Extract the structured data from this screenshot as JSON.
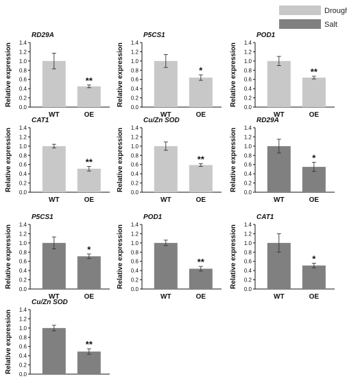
{
  "legend": {
    "position": "top-right",
    "items": [
      {
        "label": "Drought",
        "color": "#c8c8c8"
      },
      {
        "label": "Salt",
        "color": "#808080"
      }
    ]
  },
  "chart_data": [
    {
      "type": "bar",
      "title": "RD29A",
      "treatment": "Drought",
      "categories": [
        "WT",
        "OE"
      ],
      "values": [
        1.0,
        0.45
      ],
      "errors": [
        0.17,
        0.03
      ],
      "significance": [
        "",
        "**"
      ],
      "ylabel": "Relative expression",
      "ylim": [
        0,
        1.4
      ],
      "yticks": [
        0.0,
        0.2,
        0.4,
        0.6,
        0.8,
        1.0,
        1.2,
        1.4
      ]
    },
    {
      "type": "bar",
      "title": "P5CS1",
      "treatment": "Drought",
      "categories": [
        "WT",
        "OE"
      ],
      "values": [
        1.0,
        0.64
      ],
      "errors": [
        0.14,
        0.06
      ],
      "significance": [
        "",
        "*"
      ],
      "ylabel": "Relative expression",
      "ylim": [
        0,
        1.4
      ],
      "yticks": [
        0.0,
        0.2,
        0.4,
        0.6,
        0.8,
        1.0,
        1.2,
        1.4
      ]
    },
    {
      "type": "bar",
      "title": "POD1",
      "treatment": "Drought",
      "categories": [
        "WT",
        "OE"
      ],
      "values": [
        1.0,
        0.64
      ],
      "errors": [
        0.1,
        0.03
      ],
      "significance": [
        "",
        "**"
      ],
      "ylabel": "Relative expression",
      "ylim": [
        0,
        1.4
      ],
      "yticks": [
        0.0,
        0.2,
        0.4,
        0.6,
        0.8,
        1.0,
        1.2,
        1.4
      ]
    },
    {
      "type": "bar",
      "title": "CAT1",
      "treatment": "Drought",
      "categories": [
        "WT",
        "OE"
      ],
      "values": [
        1.0,
        0.51
      ],
      "errors": [
        0.04,
        0.05
      ],
      "significance": [
        "",
        "**"
      ],
      "ylabel": "Relative expression",
      "ylim": [
        0,
        1.4
      ],
      "yticks": [
        0.0,
        0.2,
        0.4,
        0.6,
        0.8,
        1.0,
        1.2,
        1.4
      ]
    },
    {
      "type": "bar",
      "title": "Cu/Zn SOD",
      "treatment": "Drought",
      "categories": [
        "WT",
        "OE"
      ],
      "values": [
        1.0,
        0.59
      ],
      "errors": [
        0.09,
        0.03
      ],
      "significance": [
        "",
        "**"
      ],
      "ylabel": "Relative expression",
      "ylim": [
        0,
        1.4
      ],
      "yticks": [
        0.0,
        0.2,
        0.4,
        0.6,
        0.8,
        1.0,
        1.2,
        1.4
      ]
    },
    {
      "type": "bar",
      "title": "RD29A",
      "treatment": "Salt",
      "categories": [
        "WT",
        "OE"
      ],
      "values": [
        1.0,
        0.55
      ],
      "errors": [
        0.15,
        0.1
      ],
      "significance": [
        "",
        "*"
      ],
      "ylabel": "Relative expression",
      "ylim": [
        0,
        1.4
      ],
      "yticks": [
        0.0,
        0.2,
        0.4,
        0.6,
        0.8,
        1.0,
        1.2,
        1.4
      ]
    },
    {
      "type": "bar",
      "title": "P5CS1",
      "treatment": "Salt",
      "categories": [
        "WT",
        "OE"
      ],
      "values": [
        1.0,
        0.71
      ],
      "errors": [
        0.13,
        0.05
      ],
      "significance": [
        "",
        "*"
      ],
      "ylabel": "Relative expression",
      "ylim": [
        0,
        1.4
      ],
      "yticks": [
        0.0,
        0.2,
        0.4,
        0.6,
        0.8,
        1.0,
        1.2,
        1.4
      ]
    },
    {
      "type": "bar",
      "title": "POD1",
      "treatment": "Salt",
      "categories": [
        "WT",
        "OE"
      ],
      "values": [
        1.0,
        0.44
      ],
      "errors": [
        0.06,
        0.05
      ],
      "significance": [
        "",
        "**"
      ],
      "ylabel": "Relative expression",
      "ylim": [
        0,
        1.4
      ],
      "yticks": [
        0.0,
        0.2,
        0.4,
        0.6,
        0.8,
        1.0,
        1.2,
        1.4
      ]
    },
    {
      "type": "bar",
      "title": "CAT1",
      "treatment": "Salt",
      "categories": [
        "WT",
        "OE"
      ],
      "values": [
        1.0,
        0.51
      ],
      "errors": [
        0.2,
        0.05
      ],
      "significance": [
        "",
        "*"
      ],
      "ylabel": "Relative expression",
      "ylim": [
        0,
        1.4
      ],
      "yticks": [
        0.0,
        0.2,
        0.4,
        0.6,
        0.8,
        1.0,
        1.2,
        1.4
      ]
    },
    {
      "type": "bar",
      "title": "Cu/Zn SOD",
      "treatment": "Salt",
      "categories": [
        "WT",
        "OE"
      ],
      "values": [
        1.0,
        0.49
      ],
      "errors": [
        0.06,
        0.06
      ],
      "significance": [
        "",
        "**"
      ],
      "ylabel": "Relative expression",
      "ylim": [
        0,
        1.4
      ],
      "yticks": [
        0.0,
        0.2,
        0.4,
        0.6,
        0.8,
        1.0,
        1.2,
        1.4
      ]
    }
  ]
}
